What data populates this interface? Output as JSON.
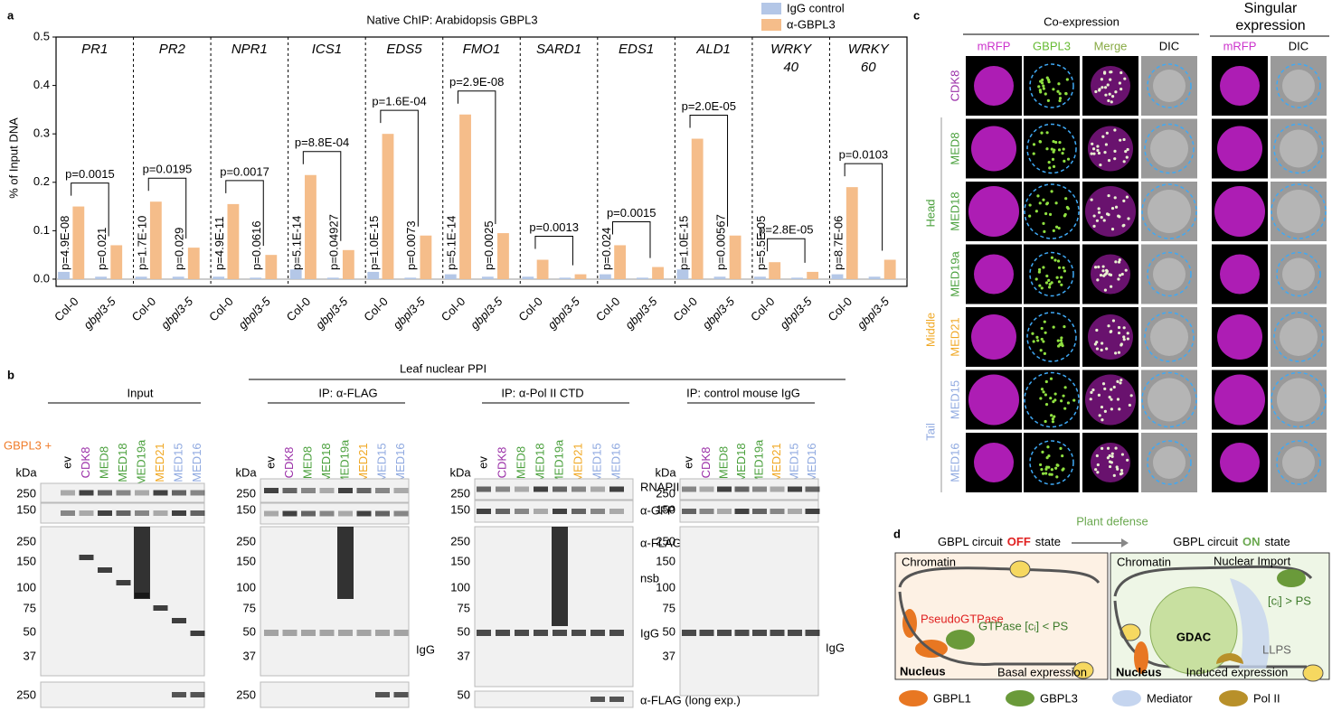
{
  "chart_data": {
    "type": "bar",
    "panel_label": "a",
    "title": "Native ChIP: Arabidopsis GBPL3",
    "ylabel": "% of Input DNA",
    "categories": [
      "PR1",
      "PR2",
      "NPR1",
      "ICS1",
      "EDS5",
      "FMO1",
      "SARD1",
      "EDS1",
      "ALD1",
      "WRKY 40",
      "WRKY 60"
    ],
    "groups": [
      "Col-0",
      "gbpl3-5"
    ],
    "series": [
      {
        "name": "IgG control",
        "color": "#b4c7e7",
        "values": [
          [
            0.015,
            0.005
          ],
          [
            0.005,
            0.005
          ],
          [
            0.005,
            0.003
          ],
          [
            0.02,
            0.003
          ],
          [
            0.015,
            0.003
          ],
          [
            0.01,
            0.005
          ],
          [
            0.005,
            0.003
          ],
          [
            0.01,
            0.003
          ],
          [
            0.02,
            0.005
          ],
          [
            0.005,
            0.003
          ],
          [
            0.01,
            0.005
          ]
        ]
      },
      {
        "name": "α-GBPL3",
        "color": "#f5bd8a",
        "values": [
          [
            0.15,
            0.07
          ],
          [
            0.16,
            0.065
          ],
          [
            0.155,
            0.05
          ],
          [
            0.215,
            0.06
          ],
          [
            0.3,
            0.09
          ],
          [
            0.34,
            0.095
          ],
          [
            0.04,
            0.01
          ],
          [
            0.07,
            0.025
          ],
          [
            0.29,
            0.09
          ],
          [
            0.035,
            0.015
          ],
          [
            0.19,
            0.04
          ]
        ]
      }
    ],
    "p_values": {
      "top": [
        "p=0.0015",
        "p=0.0195",
        "p=0.0017",
        "p=8.8E-04",
        "p=1.6E-04",
        "p=2.9E-08",
        "p=0.0013",
        "p=0.0015",
        "p=2.0E-05",
        "p=2.8E-05",
        "p=0.0103"
      ],
      "col0": [
        "p=4.9E-08",
        "p=1.7E-10",
        "p=4.9E-11",
        "p=5.1E-14",
        "p=1.0E-15",
        "p=5.1E-14",
        null,
        "p=0.024",
        "p=1.0E-15",
        "p=5.5E-05",
        "p=8.7E-06"
      ],
      "mutant": [
        "p=0.021",
        "p=0.029",
        "p=0.0616",
        "p=0.04927",
        "p=0.0073",
        "p=0.0025",
        null,
        null,
        "p=0.00567",
        null,
        null
      ]
    },
    "ylim": [
      -0.015,
      0.5
    ],
    "yticks": [
      {
        "value": 0,
        "label": "0.0"
      },
      0.1,
      0.2,
      0.3,
      0.4,
      0.5
    ],
    "legend": "upper right"
  },
  "panel_b": {
    "label": "b",
    "title": "Leaf nuclear PPI",
    "construct": "GBPL3 +",
    "construct_color": "#f07c2a",
    "kda": "kDa",
    "lanes": [
      {
        "name": "ev",
        "color": "#000000"
      },
      {
        "name": "CDK8",
        "color": "#9b30a8"
      },
      {
        "name": "MED8",
        "color": "#4aa03c"
      },
      {
        "name": "MED18",
        "color": "#4aa03c"
      },
      {
        "name": "MED19a",
        "color": "#4aa03c"
      },
      {
        "name": "MED21",
        "color": "#f0a824"
      },
      {
        "name": "MED15",
        "color": "#8fa9e0"
      },
      {
        "name": "MED16",
        "color": "#8fa9e0"
      }
    ],
    "blots": [
      {
        "title": "Input",
        "markers": [
          "250",
          "150",
          "250",
          "150",
          "100",
          "75",
          "50",
          "37",
          "250"
        ],
        "side_labels": []
      },
      {
        "title": "IP: α-FLAG",
        "markers": [
          "250",
          "150",
          "250",
          "150",
          "100",
          "75",
          "50",
          "37",
          "250"
        ],
        "side_labels": [
          "IgG"
        ]
      },
      {
        "title": "IP: α-Pol II CTD",
        "markers": [
          "250",
          "150",
          "250",
          "150",
          "100",
          "75",
          "50",
          "37",
          "50"
        ],
        "side_labels": [
          "RNAPII",
          "α-GFP",
          "α-FLAG",
          "nsb",
          "IgG",
          "α-FLAG (long exp.)"
        ]
      },
      {
        "title": "IP: control mouse IgG",
        "markers": [
          "250",
          "150",
          "250",
          "150",
          "100",
          "75",
          "50",
          "37"
        ],
        "side_labels": [
          "IgG"
        ]
      }
    ]
  },
  "panel_c": {
    "label": "c",
    "co_expression": "Co-expression",
    "singular": "Singular expression",
    "columns": [
      {
        "name": "mRFP",
        "color": "#cc33cc"
      },
      {
        "name": "GBPL3",
        "color": "#66bb33"
      },
      {
        "name": "Merge",
        "color": "#88aa44"
      },
      {
        "name": "DIC",
        "color": "#000000"
      },
      {
        "name": "mRFP",
        "color": "#cc33cc"
      },
      {
        "name": "DIC",
        "color": "#000000"
      }
    ],
    "rows": [
      {
        "name": "CDK8",
        "color": "#9b30a8"
      },
      {
        "name": "MED8",
        "color": "#4aa03c"
      },
      {
        "name": "MED18",
        "color": "#4aa03c"
      },
      {
        "name": "MED19a",
        "color": "#4aa03c"
      },
      {
        "name": "MED21",
        "color": "#f0a824"
      },
      {
        "name": "MED15",
        "color": "#8fa9e0"
      },
      {
        "name": "MED16",
        "color": "#8fa9e0"
      }
    ],
    "groups": [
      {
        "name": "Head",
        "color": "#4aa03c"
      },
      {
        "name": "Middle",
        "color": "#f0a824"
      },
      {
        "name": "Tail",
        "color": "#8fa9e0"
      }
    ]
  },
  "panel_d": {
    "label": "d",
    "trigger": "Plant defense",
    "off_state": {
      "prefix": "GBPL circuit",
      "state": "OFF",
      "suffix": "state",
      "color": "#e02020"
    },
    "on_state": {
      "prefix": "GBPL circuit",
      "state": "ON",
      "suffix": "state",
      "color": "#6aa84f"
    },
    "off_box": {
      "chromatin": "Chromatin",
      "pseudo": "PseudoGTPase",
      "gtpase": "GTPase [cᵢ] < PS",
      "nucleus": "Nucleus",
      "expression": "Basal expression"
    },
    "on_box": {
      "chromatin": "Chromatin",
      "import": "Nuclear Import",
      "conc": "[cᵢ] > PS",
      "gdac": "GDAC",
      "llps": "LLPS",
      "nucleus": "Nucleus",
      "expression": "Induced expression"
    },
    "legend": [
      {
        "name": "GBPL1",
        "color": "#e87722"
      },
      {
        "name": "GBPL3",
        "color": "#6a9a3a"
      },
      {
        "name": "Mediator",
        "color": "#c5d5ef"
      },
      {
        "name": "Pol II",
        "color": "#b8902a"
      }
    ]
  }
}
